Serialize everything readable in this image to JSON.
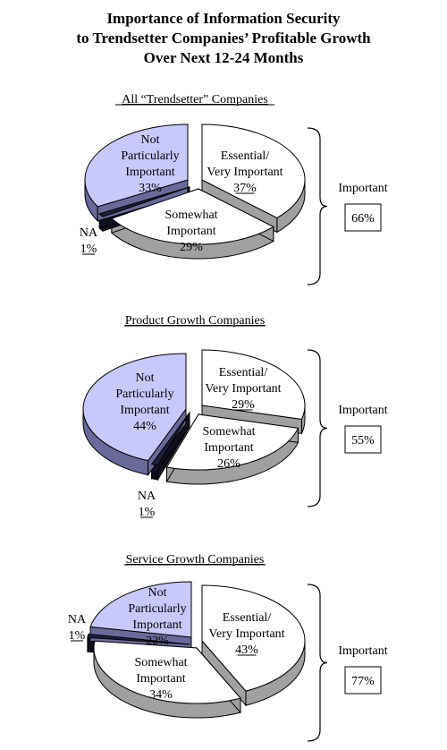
{
  "title": {
    "line1": "Importance of Information Security",
    "line2": "to Trendsetter Companies’ Profitable Growth",
    "line3": "Over Next 12-24 Months"
  },
  "bracket_label": "Important",
  "chart_data": [
    {
      "type": "pie",
      "title": "All “Trendsetter” Companies",
      "important_total": "66%",
      "slices": [
        {
          "label": [
            "Essential/",
            "Very Important"
          ],
          "value": 37,
          "pct": "37%",
          "color": "#ffffff"
        },
        {
          "label": [
            "Somewhat",
            "Important"
          ],
          "value": 29,
          "pct": "29%",
          "color": "#ffffff"
        },
        {
          "label": [
            "NA"
          ],
          "value": 1,
          "pct": "1%",
          "color": "#202040"
        },
        {
          "label": [
            "Not",
            "Particularly",
            "Important"
          ],
          "value": 33,
          "pct": "33%",
          "color": "#c8c8ff"
        }
      ]
    },
    {
      "type": "pie",
      "title": "Product Growth Companies",
      "important_total": "55%",
      "slices": [
        {
          "label": [
            "Essential/",
            "Very Important"
          ],
          "value": 29,
          "pct": "29%",
          "color": "#ffffff"
        },
        {
          "label": [
            "Somewhat",
            "Important"
          ],
          "value": 26,
          "pct": "26%",
          "color": "#ffffff"
        },
        {
          "label": [
            "NA"
          ],
          "value": 1,
          "pct": "1%",
          "color": "#202040"
        },
        {
          "label": [
            "Not",
            "Particularly",
            "Important"
          ],
          "value": 44,
          "pct": "44%",
          "color": "#c8c8ff"
        }
      ]
    },
    {
      "type": "pie",
      "title": "Service Growth Companies",
      "important_total": "77%",
      "slices": [
        {
          "label": [
            "Essential/",
            "Very Important"
          ],
          "value": 43,
          "pct": "43%",
          "color": "#ffffff"
        },
        {
          "label": [
            "Somewhat",
            "Important"
          ],
          "value": 34,
          "pct": "34%",
          "color": "#ffffff"
        },
        {
          "label": [
            "NA"
          ],
          "value": 1,
          "pct": "1%",
          "color": "#202040"
        },
        {
          "label": [
            "Not",
            "Particularly",
            "Important"
          ],
          "value": 22,
          "pct": "22%",
          "color": "#c8c8ff"
        }
      ]
    }
  ]
}
